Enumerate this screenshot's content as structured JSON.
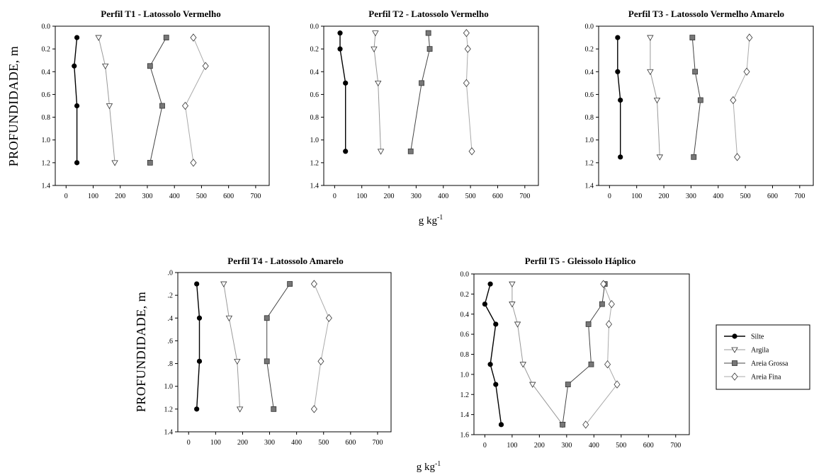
{
  "figure": {
    "y_label": "PROFUNDIDADE, m",
    "x_label_base": "g kg",
    "x_label_exp": "-1"
  },
  "legend": {
    "entries": [
      {
        "series": "Silte",
        "label": "Silte"
      },
      {
        "series": "Argila",
        "label": "Argila"
      },
      {
        "series": "Areia Grossa",
        "label": "Areia Grossa"
      },
      {
        "series": "Areia Fina",
        "label": "Areia Fina"
      }
    ]
  },
  "series_styles": {
    "Silte": {
      "marker": "circle",
      "fill": "#000000",
      "line": "#000000"
    },
    "Argila": {
      "marker": "triangle-down",
      "fill": "#ffffff",
      "line": "#999999"
    },
    "Areia Grossa": {
      "marker": "square",
      "fill": "#777777",
      "line": "#444444"
    },
    "Areia Fina": {
      "marker": "diamond",
      "fill": "#ffffff",
      "line": "#aaaaaa"
    }
  },
  "chart_data": [
    {
      "type": "line",
      "title": "Perfil T1 - Latossolo Vermelho",
      "xlim": [
        -40,
        750
      ],
      "ylim": [
        0,
        1.4
      ],
      "xticks": [
        "0",
        "100",
        "200",
        "300",
        "400",
        "500",
        "600",
        "700"
      ],
      "yticks": [
        "0.0",
        "0.2",
        "0.4",
        "0.6",
        "0.8",
        "1.0",
        "1.2",
        "1.4"
      ],
      "series": [
        {
          "name": "Silte",
          "points": [
            [
              40,
              0.1
            ],
            [
              30,
              0.35
            ],
            [
              40,
              0.7
            ],
            [
              40,
              1.2
            ]
          ]
        },
        {
          "name": "Argila",
          "points": [
            [
              120,
              0.1
            ],
            [
              145,
              0.35
            ],
            [
              160,
              0.7
            ],
            [
              180,
              1.2
            ]
          ]
        },
        {
          "name": "Areia Grossa",
          "points": [
            [
              370,
              0.1
            ],
            [
              310,
              0.35
            ],
            [
              355,
              0.7
            ],
            [
              310,
              1.2
            ]
          ]
        },
        {
          "name": "Areia Fina",
          "points": [
            [
              470,
              0.1
            ],
            [
              515,
              0.35
            ],
            [
              440,
              0.7
            ],
            [
              470,
              1.2
            ]
          ]
        }
      ]
    },
    {
      "type": "line",
      "title": "Perfil T2 - Latossolo Vermelho",
      "xlim": [
        -40,
        750
      ],
      "ylim": [
        0,
        1.4
      ],
      "xticks": [
        "0",
        "100",
        "200",
        "300",
        "400",
        "500",
        "600",
        "700"
      ],
      "yticks": [
        "0.0",
        "0.2",
        "0.4",
        "0.6",
        "0.8",
        "1.0",
        "1.2",
        "1.4"
      ],
      "series": [
        {
          "name": "Silte",
          "points": [
            [
              20,
              0.06
            ],
            [
              20,
              0.2
            ],
            [
              40,
              0.5
            ],
            [
              40,
              1.1
            ]
          ]
        },
        {
          "name": "Argila",
          "points": [
            [
              150,
              0.06
            ],
            [
              145,
              0.2
            ],
            [
              160,
              0.5
            ],
            [
              170,
              1.1
            ]
          ]
        },
        {
          "name": "Areia Grossa",
          "points": [
            [
              345,
              0.06
            ],
            [
              350,
              0.2
            ],
            [
              320,
              0.5
            ],
            [
              280,
              1.1
            ]
          ]
        },
        {
          "name": "Areia Fina",
          "points": [
            [
              485,
              0.06
            ],
            [
              490,
              0.2
            ],
            [
              485,
              0.5
            ],
            [
              505,
              1.1
            ]
          ]
        }
      ]
    },
    {
      "type": "line",
      "title": "Perfil T3 - Latossolo Vermelho Amarelo",
      "xlim": [
        -40,
        750
      ],
      "ylim": [
        0,
        1.4
      ],
      "xticks": [
        "0",
        "100",
        "200",
        "300",
        "400",
        "500",
        "600",
        "700"
      ],
      "yticks": [
        "0.0",
        "0.2",
        "0.4",
        "0.6",
        "0.8",
        "1.0",
        "1.2",
        "1.4"
      ],
      "series": [
        {
          "name": "Silte",
          "points": [
            [
              30,
              0.1
            ],
            [
              30,
              0.4
            ],
            [
              40,
              0.65
            ],
            [
              40,
              1.15
            ]
          ]
        },
        {
          "name": "Argila",
          "points": [
            [
              150,
              0.1
            ],
            [
              150,
              0.4
            ],
            [
              175,
              0.65
            ],
            [
              185,
              1.15
            ]
          ]
        },
        {
          "name": "Areia Grossa",
          "points": [
            [
              305,
              0.1
            ],
            [
              315,
              0.4
            ],
            [
              335,
              0.65
            ],
            [
              310,
              1.15
            ]
          ]
        },
        {
          "name": "Areia Fina",
          "points": [
            [
              515,
              0.1
            ],
            [
              505,
              0.4
            ],
            [
              455,
              0.65
            ],
            [
              470,
              1.15
            ]
          ]
        }
      ]
    },
    {
      "type": "line",
      "title": "Perfil T4 - Latossolo Amarelo",
      "xlim": [
        -40,
        750
      ],
      "ylim": [
        0,
        1.4
      ],
      "xticks": [
        "0",
        "100",
        "200",
        "300",
        "400",
        "500",
        "600",
        "700"
      ],
      "yticks": [
        ".0",
        ".2",
        ".4",
        ".6",
        ".8",
        "1.0",
        "1.2",
        "1.4"
      ],
      "series": [
        {
          "name": "Silte",
          "points": [
            [
              30,
              0.1
            ],
            [
              40,
              0.4
            ],
            [
              40,
              0.78
            ],
            [
              30,
              1.2
            ]
          ]
        },
        {
          "name": "Argila",
          "points": [
            [
              130,
              0.1
            ],
            [
              150,
              0.4
            ],
            [
              180,
              0.78
            ],
            [
              190,
              1.2
            ]
          ]
        },
        {
          "name": "Areia Grossa",
          "points": [
            [
              375,
              0.1
            ],
            [
              290,
              0.4
            ],
            [
              290,
              0.78
            ],
            [
              315,
              1.2
            ]
          ]
        },
        {
          "name": "Areia Fina",
          "points": [
            [
              465,
              0.1
            ],
            [
              520,
              0.4
            ],
            [
              490,
              0.78
            ],
            [
              465,
              1.2
            ]
          ]
        }
      ]
    },
    {
      "type": "line",
      "title": "Perfil T5 - Gleissolo Háplico",
      "xlim": [
        -40,
        750
      ],
      "ylim": [
        0,
        1.6
      ],
      "xticks": [
        "0",
        "100",
        "200",
        "300",
        "400",
        "500",
        "600",
        "700"
      ],
      "yticks": [
        "0.0",
        "0.2",
        "0.4",
        "0.6",
        "0.8",
        "1.0",
        "1.2",
        "1.4",
        "1.6"
      ],
      "series": [
        {
          "name": "Silte",
          "points": [
            [
              20,
              0.1
            ],
            [
              0,
              0.3
            ],
            [
              40,
              0.5
            ],
            [
              20,
              0.9
            ],
            [
              40,
              1.1
            ],
            [
              60,
              1.5
            ]
          ]
        },
        {
          "name": "Argila",
          "points": [
            [
              100,
              0.1
            ],
            [
              100,
              0.3
            ],
            [
              120,
              0.5
            ],
            [
              140,
              0.9
            ],
            [
              175,
              1.1
            ],
            [
              285,
              1.5
            ]
          ]
        },
        {
          "name": "Areia Grossa",
          "points": [
            [
              440,
              0.1
            ],
            [
              430,
              0.3
            ],
            [
              380,
              0.5
            ],
            [
              390,
              0.9
            ],
            [
              305,
              1.1
            ],
            [
              285,
              1.5
            ]
          ]
        },
        {
          "name": "Areia Fina",
          "points": [
            [
              435,
              0.1
            ],
            [
              465,
              0.3
            ],
            [
              455,
              0.5
            ],
            [
              450,
              0.9
            ],
            [
              485,
              1.1
            ],
            [
              370,
              1.5
            ]
          ]
        }
      ]
    }
  ]
}
